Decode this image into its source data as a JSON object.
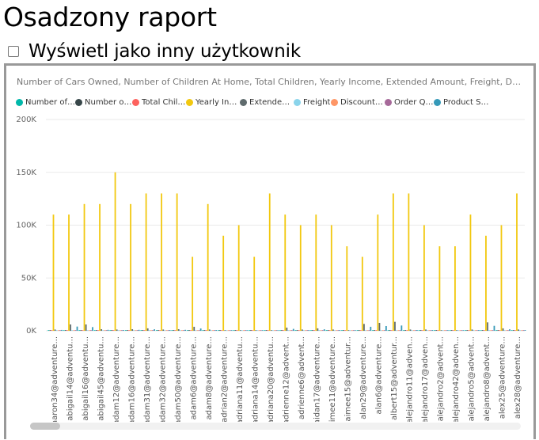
{
  "page": {
    "title": "Osadzony raport",
    "impersonate_label": "Wyświetl jako inny użytkownik"
  },
  "visual": {
    "title": "Number of Cars Owned, Number of Children At Home, Total Children, Yearly Income, Extended Amount, Freight, Discount Am...",
    "legend": [
      {
        "label": "Number of ...",
        "color": "#01B8AA"
      },
      {
        "label": "Number of ...",
        "color": "#374649"
      },
      {
        "label": "Total Child...",
        "color": "#FD625E"
      },
      {
        "label": "Yearly Inco...",
        "color": "#F2C80F"
      },
      {
        "label": "Extended ...",
        "color": "#5F6B6D"
      },
      {
        "label": "Freight",
        "color": "#8AD4EB"
      },
      {
        "label": "Discount A...",
        "color": "#FE9666"
      },
      {
        "label": "Order Qua...",
        "color": "#A66999"
      },
      {
        "label": "Product St...",
        "color": "#3599B8"
      }
    ]
  },
  "chart_data": {
    "type": "bar",
    "ylim": [
      0,
      200000
    ],
    "y_ticks": [
      {
        "value": 0,
        "label": "0K"
      },
      {
        "value": 50000,
        "label": "50K"
      },
      {
        "value": 100000,
        "label": "100K"
      },
      {
        "value": 150000,
        "label": "150K"
      },
      {
        "value": 200000,
        "label": "200K"
      }
    ],
    "grid": true,
    "legend_position": "top-left",
    "categories": [
      "aaron34@adventure...",
      "abigail14@adventu...",
      "abigail16@adventu...",
      "abigail45@adventu...",
      "adam12@adventure...",
      "adam16@adventure...",
      "adam31@adventure...",
      "adam32@adventure...",
      "adam50@adventure...",
      "adam6@adventure...",
      "adam8@adventure...",
      "adrian2@adventure...",
      "adriana11@adventu...",
      "adriana14@adventu...",
      "adriana20@adventu...",
      "adrienne12@advent...",
      "adrienne6@advent...",
      "aidan17@adventure...",
      "aimee11@adventure...",
      "aimee15@adventur...",
      "alan29@adventure...",
      "alan6@adventure...",
      "albert15@adventur...",
      "alejandro11@adven...",
      "alejandro17@adven...",
      "alejandro2@advent...",
      "alejandro42@adven...",
      "alejandro5@advent...",
      "alejandro8@advent...",
      "alex25@adventure...",
      "alex28@adventure..."
    ],
    "series": [
      {
        "name": "Number of ...",
        "values": [
          0,
          0,
          0,
          0,
          0,
          0,
          0,
          0,
          0,
          0,
          0,
          0,
          0,
          0,
          0,
          0,
          0,
          0,
          0,
          0,
          0,
          0,
          0,
          0,
          0,
          0,
          0,
          0,
          0,
          0,
          0
        ]
      },
      {
        "name": "Number of ...",
        "values": [
          0,
          0,
          0,
          0,
          0,
          0,
          0,
          0,
          0,
          0,
          0,
          0,
          0,
          0,
          0,
          0,
          0,
          0,
          0,
          0,
          0,
          0,
          0,
          0,
          0,
          0,
          0,
          0,
          0,
          0,
          0
        ]
      },
      {
        "name": "Total Child...",
        "values": [
          0,
          0,
          0,
          0,
          0,
          0,
          0,
          0,
          0,
          0,
          0,
          0,
          0,
          0,
          0,
          0,
          0,
          0,
          0,
          0,
          0,
          0,
          0,
          0,
          0,
          0,
          0,
          0,
          0,
          0,
          0
        ]
      },
      {
        "name": "Yearly Inco...",
        "values": [
          110000,
          110000,
          120000,
          120000,
          150000,
          120000,
          130000,
          130000,
          130000,
          70000,
          120000,
          90000,
          100000,
          70000,
          130000,
          110000,
          100000,
          110000,
          100000,
          80000,
          70000,
          110000,
          130000,
          130000,
          100000,
          80000,
          80000,
          110000,
          90000,
          100000,
          130000
        ]
      },
      {
        "name": "Extended ...",
        "values": [
          1200,
          6000,
          6000,
          1500,
          1200,
          1500,
          2300,
          1200,
          1500,
          3800,
          1200,
          600,
          600,
          600,
          600,
          3000,
          1200,
          2300,
          1200,
          600,
          6500,
          7500,
          8500,
          1200,
          1200,
          600,
          600,
          1200,
          8000,
          2300,
          1200
        ]
      },
      {
        "name": "Freight",
        "values": [
          30,
          150,
          150,
          40,
          30,
          40,
          60,
          30,
          40,
          95,
          30,
          15,
          15,
          15,
          15,
          75,
          30,
          60,
          30,
          15,
          160,
          190,
          210,
          30,
          30,
          15,
          15,
          30,
          200,
          60,
          30
        ]
      },
      {
        "name": "Discount A...",
        "values": [
          0,
          0,
          0,
          0,
          0,
          0,
          0,
          0,
          0,
          0,
          0,
          0,
          0,
          0,
          0,
          0,
          0,
          0,
          0,
          0,
          0,
          0,
          0,
          0,
          0,
          0,
          0,
          0,
          0,
          0,
          0
        ]
      },
      {
        "name": "Order Qua...",
        "values": [
          1,
          3,
          3,
          1,
          1,
          1,
          2,
          1,
          1,
          2,
          1,
          1,
          1,
          1,
          1,
          2,
          1,
          2,
          1,
          1,
          3,
          3,
          4,
          1,
          1,
          1,
          1,
          1,
          3,
          2,
          1
        ]
      },
      {
        "name": "Product St...",
        "values": [
          800,
          4000,
          3500,
          900,
          700,
          900,
          1400,
          700,
          900,
          2200,
          700,
          350,
          350,
          350,
          350,
          1800,
          700,
          1400,
          700,
          350,
          3800,
          4500,
          5000,
          700,
          700,
          350,
          350,
          700,
          4700,
          1400,
          700
        ]
      }
    ]
  }
}
